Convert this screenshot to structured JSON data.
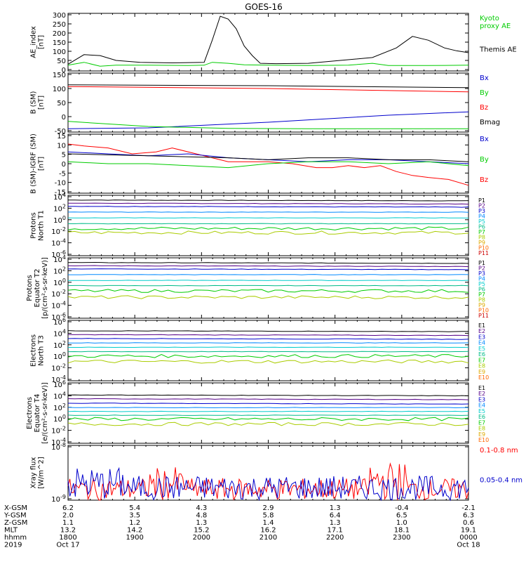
{
  "page_title": "GOES-16",
  "colors": {
    "black": "#000000",
    "red": "#ff0000",
    "green": "#00cc00",
    "blue": "#0000cc"
  },
  "chart_data": [
    {
      "type": "line",
      "ylabel": "AE_index\n[nT]",
      "yticks": [
        "300",
        "250",
        "200",
        "150",
        "100",
        "50",
        "0"
      ],
      "ylim": [
        0,
        300
      ],
      "legend": [
        {
          "name": "Kyoto\nproxy AE",
          "color": "#00cc00"
        },
        {
          "name": "Themis AE",
          "color": "#000000"
        }
      ],
      "series": [
        {
          "name": "Themis AE",
          "color": "#000000",
          "x": [
            0,
            0.04,
            0.08,
            0.12,
            0.18,
            0.26,
            0.34,
            0.36,
            0.38,
            0.4,
            0.42,
            0.44,
            0.46,
            0.48,
            0.52,
            0.6,
            0.68,
            0.76,
            0.82,
            0.86,
            0.9,
            0.94,
            0.97,
            1.0
          ],
          "y": [
            35,
            85,
            80,
            55,
            45,
            42,
            45,
            160,
            285,
            270,
            220,
            130,
            80,
            40,
            38,
            40,
            55,
            70,
            120,
            180,
            160,
            120,
            105,
            95
          ]
        },
        {
          "name": "Kyoto proxy AE",
          "color": "#00cc00",
          "x": [
            0,
            0.04,
            0.08,
            0.12,
            0.2,
            0.3,
            0.34,
            0.36,
            0.4,
            0.44,
            0.5,
            0.6,
            0.7,
            0.76,
            0.8,
            0.9,
            1.0
          ],
          "y": [
            30,
            45,
            25,
            30,
            30,
            28,
            30,
            45,
            40,
            32,
            30,
            28,
            30,
            40,
            28,
            28,
            30
          ]
        }
      ]
    },
    {
      "type": "line",
      "ylabel": "B (SM)\n[nT]",
      "yticks": [
        "150",
        "100",
        "50",
        "0",
        "-50"
      ],
      "ylim": [
        -60,
        150
      ],
      "legend": [
        {
          "name": "Bx",
          "color": "#0000cc"
        },
        {
          "name": "By",
          "color": "#00cc00"
        },
        {
          "name": "Bz",
          "color": "#ff0000"
        },
        {
          "name": "Bmag",
          "color": "#000000"
        }
      ],
      "series": [
        {
          "name": "Bmag",
          "color": "#000000",
          "x": [
            0,
            0.5,
            1.0
          ],
          "y": [
            108,
            105,
            98
          ]
        },
        {
          "name": "Bz",
          "color": "#ff0000",
          "x": [
            0,
            0.5,
            1.0
          ],
          "y": [
            102,
            95,
            83
          ]
        },
        {
          "name": "Bx",
          "color": "#0000cc",
          "x": [
            0,
            0.2,
            0.5,
            0.8,
            1.0
          ],
          "y": [
            -48,
            -45,
            -25,
            0,
            12
          ]
        },
        {
          "name": "By",
          "color": "#00cc00",
          "x": [
            0,
            0.2,
            0.4,
            0.6,
            1.0
          ],
          "y": [
            -22,
            -40,
            -47,
            -48,
            -48
          ]
        }
      ]
    },
    {
      "type": "line",
      "ylabel": "B (SM)-IGRF (SM)\n[nT]",
      "yticks": [
        "15",
        "10",
        "5",
        "0",
        "-5",
        "-10",
        "-15"
      ],
      "ylim": [
        -15,
        15
      ],
      "legend": [
        {
          "name": "Bx",
          "color": "#0000cc"
        },
        {
          "name": "By",
          "color": "#00cc00"
        },
        {
          "name": "Bz",
          "color": "#ff0000"
        }
      ],
      "series": [
        {
          "name": "Bz",
          "color": "#ff0000",
          "x": [
            0,
            0.04,
            0.1,
            0.16,
            0.22,
            0.26,
            0.32,
            0.4,
            0.5,
            0.56,
            0.62,
            0.66,
            0.7,
            0.74,
            0.78,
            0.82,
            0.86,
            0.9,
            0.95,
            1.0
          ],
          "y": [
            10,
            9,
            8,
            5,
            6,
            8,
            5,
            1,
            1,
            0,
            -2,
            -2,
            -1,
            -2,
            -1,
            -4,
            -6,
            -7,
            -8,
            -11
          ]
        },
        {
          "name": "Bx",
          "color": "#0000cc",
          "x": [
            0,
            0.1,
            0.2,
            0.3,
            0.4,
            0.5,
            0.6,
            0.7,
            0.8,
            0.9,
            1.0
          ],
          "y": [
            6,
            5,
            4,
            5,
            3,
            2,
            1,
            2,
            2,
            1,
            0
          ]
        },
        {
          "name": "By",
          "color": "#00cc00",
          "x": [
            0,
            0.1,
            0.2,
            0.3,
            0.4,
            0.5,
            0.6,
            0.7,
            0.8,
            0.9,
            1.0
          ],
          "y": [
            1,
            0,
            0,
            -1,
            -2,
            0,
            1,
            1,
            0,
            1,
            -1
          ]
        },
        {
          "name": "Bmag",
          "color": "#000000",
          "x": [
            0,
            0.2,
            0.4,
            0.5,
            0.6,
            0.7,
            0.8,
            0.9,
            1.0
          ],
          "y": [
            5,
            4,
            3,
            2,
            3,
            3,
            2,
            2,
            1
          ]
        }
      ]
    },
    {
      "type": "line",
      "ylabel": "Protons\nNorth T1",
      "yticks": [
        "10^4",
        "10^2",
        "10^0",
        "10^-2",
        "10^-4",
        "10^-6"
      ],
      "ylog": true,
      "ylim": [
        -7,
        4.5
      ],
      "legend": [
        {
          "name": "P1",
          "color": "#000000"
        },
        {
          "name": "P2",
          "color": "#550088"
        },
        {
          "name": "P3",
          "color": "#0000cc"
        },
        {
          "name": "P4",
          "color": "#0088ff"
        },
        {
          "name": "P5",
          "color": "#00cccc"
        },
        {
          "name": "P6",
          "color": "#00bb88"
        },
        {
          "name": "P7",
          "color": "#00cc00"
        },
        {
          "name": "P8",
          "color": "#aacc00"
        },
        {
          "name": "P9",
          "color": "#ddaa00"
        },
        {
          "name": "P10",
          "color": "#ff6600"
        },
        {
          "name": "P11",
          "color": "#cc0000"
        }
      ],
      "levels": [
        3.6,
        3.0,
        2.4,
        1.3,
        0.2,
        -0.9,
        -1.8,
        -2.6
      ]
    },
    {
      "type": "line",
      "ylabel": "Protons\nEquator T2\n[p/(cm²-s-sr-keV)]",
      "yticks": [
        "10^4",
        "10^2",
        "10^0",
        "10^-2",
        "10^-4",
        "10^-6"
      ],
      "ylog": true,
      "ylim": [
        -7,
        4.5
      ],
      "legend": [
        {
          "name": "P1",
          "color": "#000000"
        },
        {
          "name": "P2",
          "color": "#550088"
        },
        {
          "name": "P3",
          "color": "#0000cc"
        },
        {
          "name": "P4",
          "color": "#0088ff"
        },
        {
          "name": "P5",
          "color": "#00cccc"
        },
        {
          "name": "P6",
          "color": "#00bb88"
        },
        {
          "name": "P7",
          "color": "#00cc00"
        },
        {
          "name": "P8",
          "color": "#aacc00"
        },
        {
          "name": "P9",
          "color": "#ddaa00"
        },
        {
          "name": "P10",
          "color": "#ff6600"
        },
        {
          "name": "P11",
          "color": "#cc0000"
        }
      ],
      "levels": [
        3.6,
        3.0,
        2.4,
        1.3,
        0.2,
        -0.8,
        -1.8,
        -3.0
      ]
    },
    {
      "type": "line",
      "ylabel": "Electrons\nNorth T3",
      "yticks": [
        "10^6",
        "10^4",
        "10^2",
        "10^0",
        "10^-2",
        "10^-4"
      ],
      "ylog": true,
      "ylim": [
        -4.5,
        6.5
      ],
      "legend": [
        {
          "name": "E1",
          "color": "#000000"
        },
        {
          "name": "E2",
          "color": "#550088"
        },
        {
          "name": "E3",
          "color": "#0000cc"
        },
        {
          "name": "E4",
          "color": "#0088ff"
        },
        {
          "name": "E5",
          "color": "#00cccc"
        },
        {
          "name": "E6",
          "color": "#00bb88"
        },
        {
          "name": "E7",
          "color": "#00cc00"
        },
        {
          "name": "E8",
          "color": "#aacc00"
        },
        {
          "name": "E9",
          "color": "#ddaa00"
        },
        {
          "name": "E10",
          "color": "#ff6600"
        }
      ],
      "levels": [
        4.6,
        3.9,
        3.2,
        2.4,
        1.6,
        0.8,
        0.0,
        -1.0
      ]
    },
    {
      "type": "line",
      "ylabel": "Electrons\nEquator T4\n[e/(cm²-s-sr-keV)]",
      "yticks": [
        "10^6",
        "10^4",
        "10^2",
        "10^0",
        "10^-2",
        "10^-4"
      ],
      "ylog": true,
      "ylim": [
        -4.5,
        6.5
      ],
      "legend": [
        {
          "name": "E1",
          "color": "#000000"
        },
        {
          "name": "E2",
          "color": "#550088"
        },
        {
          "name": "E3",
          "color": "#0000cc"
        },
        {
          "name": "E4",
          "color": "#0088ff"
        },
        {
          "name": "E5",
          "color": "#00cccc"
        },
        {
          "name": "E6",
          "color": "#00bb88"
        },
        {
          "name": "E7",
          "color": "#00cc00"
        },
        {
          "name": "E8",
          "color": "#aacc00"
        },
        {
          "name": "E9",
          "color": "#ddaa00"
        },
        {
          "name": "E10",
          "color": "#ff6600"
        }
      ],
      "levels": [
        4.3,
        3.6,
        2.8,
        2.0,
        1.3,
        0.6,
        -0.1,
        -1.0
      ]
    },
    {
      "type": "line",
      "ylabel": "Xray flux\n[W/m^2]",
      "yticks": [
        "10^-8",
        "10^-9"
      ],
      "ylog": true,
      "ylim": [
        -9,
        -8
      ],
      "legend": [
        {
          "name": "0.1-0.8 nm",
          "color": "#ff0000"
        },
        {
          "name": "0.05-0.4 nm",
          "color": "#0000cc"
        }
      ]
    }
  ],
  "xaxis": {
    "rows": [
      {
        "label": "X-GSM",
        "values": [
          "6.2",
          "5.4",
          "4.3",
          "2.9",
          "1.3",
          "-0.4",
          "-2.1"
        ]
      },
      {
        "label": "Y-GSM",
        "values": [
          "2.0",
          "3.5",
          "4.8",
          "5.8",
          "6.4",
          "6.5",
          "6.3"
        ]
      },
      {
        "label": "Z-GSM",
        "values": [
          "1.1",
          "1.2",
          "1.3",
          "1.4",
          "1.3",
          "1.0",
          "0.6"
        ]
      },
      {
        "label": "MLT",
        "values": [
          "13.2",
          "14.2",
          "15.2",
          "16.2",
          "17.1",
          "18.1",
          "19.1"
        ]
      },
      {
        "label": "hhmm",
        "values": [
          "1800",
          "1900",
          "2000",
          "2100",
          "2200",
          "2300",
          "0000"
        ]
      },
      {
        "label": "2019",
        "values": [
          "Oct 17",
          "",
          "",
          "",
          "",
          "",
          "Oct 18"
        ]
      }
    ]
  }
}
